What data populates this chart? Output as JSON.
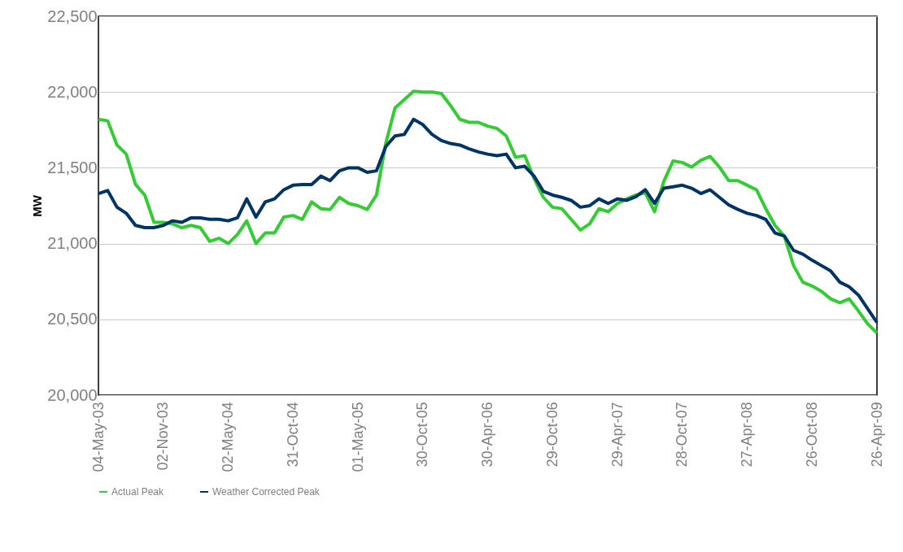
{
  "chart_data": {
    "type": "line",
    "ylabel": "MW",
    "legend": "bottom",
    "grid": "y",
    "x": [
      "2003-05-04",
      "2003-05-30",
      "2003-06-25",
      "2003-07-21",
      "2003-08-16",
      "2003-09-11",
      "2003-10-07",
      "2003-11-02",
      "2003-11-28",
      "2003-12-24",
      "2004-01-19",
      "2004-02-14",
      "2004-03-11",
      "2004-04-06",
      "2004-05-02",
      "2004-05-28",
      "2004-06-23",
      "2004-07-19",
      "2004-08-14",
      "2004-09-09",
      "2004-10-05",
      "2004-10-31",
      "2004-11-26",
      "2004-12-22",
      "2005-01-17",
      "2005-02-12",
      "2005-03-10",
      "2005-04-05",
      "2005-05-01",
      "2005-05-27",
      "2005-06-22",
      "2005-07-18",
      "2005-08-13",
      "2005-09-08",
      "2005-10-04",
      "2005-10-30",
      "2005-11-25",
      "2005-12-21",
      "2006-01-16",
      "2006-02-11",
      "2006-03-09",
      "2006-04-04",
      "2006-04-30",
      "2006-05-26",
      "2006-06-21",
      "2006-07-17",
      "2006-08-12",
      "2006-09-07",
      "2006-10-03",
      "2006-10-29",
      "2006-11-24",
      "2006-12-20",
      "2007-01-15",
      "2007-02-10",
      "2007-03-08",
      "2007-04-03",
      "2007-04-29",
      "2007-05-25",
      "2007-06-20",
      "2007-07-16",
      "2007-08-11",
      "2007-09-06",
      "2007-10-02",
      "2007-10-28",
      "2007-11-23",
      "2007-12-19",
      "2008-01-14",
      "2008-02-09",
      "2008-03-06",
      "2008-04-01",
      "2008-04-27",
      "2008-05-23",
      "2008-06-18",
      "2008-07-14",
      "2008-08-09",
      "2008-09-04",
      "2008-09-30",
      "2008-10-26",
      "2008-11-21",
      "2008-12-17",
      "2009-01-12",
      "2009-02-07",
      "2009-03-05",
      "2009-03-31",
      "2009-04-26"
    ],
    "series": [
      {
        "name": "Actual Peak",
        "color": "#33cc33",
        "values": [
          21820,
          21810,
          21650,
          21590,
          21390,
          21320,
          21140,
          21140,
          21130,
          21105,
          21120,
          21105,
          21015,
          21035,
          21000,
          21060,
          21150,
          21000,
          21070,
          21070,
          21175,
          21185,
          21160,
          21275,
          21230,
          21225,
          21305,
          21265,
          21250,
          21225,
          21320,
          21660,
          21895,
          21950,
          22005,
          22000,
          22000,
          21990,
          21910,
          21820,
          21800,
          21800,
          21775,
          21760,
          21710,
          21570,
          21580,
          21430,
          21305,
          21240,
          21230,
          21160,
          21090,
          21130,
          21230,
          21210,
          21265,
          21295,
          21320,
          21335,
          21210,
          21410,
          21545,
          21535,
          21505,
          21550,
          21575,
          21505,
          21415,
          21415,
          21385,
          21355,
          21230,
          21120,
          21050,
          20855,
          20745,
          20720,
          20685,
          20635,
          20610,
          20635,
          20555,
          20470,
          20410
        ]
      },
      {
        "name": "Weather Corrected  Peak",
        "color": "#003366",
        "values": [
          21330,
          21350,
          21240,
          21200,
          21120,
          21105,
          21105,
          21120,
          21150,
          21140,
          21170,
          21170,
          21160,
          21160,
          21150,
          21170,
          21295,
          21175,
          21275,
          21295,
          21355,
          21385,
          21390,
          21390,
          21445,
          21415,
          21480,
          21500,
          21500,
          21470,
          21480,
          21640,
          21710,
          21720,
          21820,
          21785,
          21720,
          21680,
          21660,
          21650,
          21625,
          21605,
          21590,
          21580,
          21590,
          21500,
          21510,
          21445,
          21345,
          21320,
          21305,
          21285,
          21240,
          21250,
          21295,
          21265,
          21295,
          21285,
          21310,
          21355,
          21265,
          21365,
          21375,
          21385,
          21365,
          21330,
          21355,
          21305,
          21255,
          21225,
          21200,
          21185,
          21160,
          21070,
          21050,
          20955,
          20930,
          20890,
          20855,
          20820,
          20745,
          20715,
          20660,
          20570,
          20480
        ]
      }
    ],
    "xlim": [
      "2003-05-04",
      "2009-04-26"
    ],
    "xticks": [
      {
        "value": "2003-05-04",
        "label": "04-May-03"
      },
      {
        "value": "2003-11-02",
        "label": "02-Nov-03"
      },
      {
        "value": "2004-05-02",
        "label": "02-May-04"
      },
      {
        "value": "2004-10-31",
        "label": "31-Oct-04"
      },
      {
        "value": "2005-05-01",
        "label": "01-May-05"
      },
      {
        "value": "2005-10-30",
        "label": "30-Oct-05"
      },
      {
        "value": "2006-04-30",
        "label": "30-Apr-06"
      },
      {
        "value": "2006-10-29",
        "label": "29-Oct-06"
      },
      {
        "value": "2007-04-29",
        "label": "29-Apr-07"
      },
      {
        "value": "2007-10-28",
        "label": "28-Oct-07"
      },
      {
        "value": "2008-04-27",
        "label": "27-Apr-08"
      },
      {
        "value": "2008-10-26",
        "label": "26-Oct-08"
      },
      {
        "value": "2009-04-26",
        "label": "26-Apr-09"
      }
    ],
    "ylim": [
      20000,
      22500
    ],
    "yticks": [
      {
        "value": 20000,
        "label": "20,000"
      },
      {
        "value": 20500,
        "label": "20,500"
      },
      {
        "value": 21000,
        "label": "21,000"
      },
      {
        "value": 21500,
        "label": "21,500"
      },
      {
        "value": 22000,
        "label": "22,000"
      },
      {
        "value": 22500,
        "label": "22,500"
      }
    ]
  }
}
